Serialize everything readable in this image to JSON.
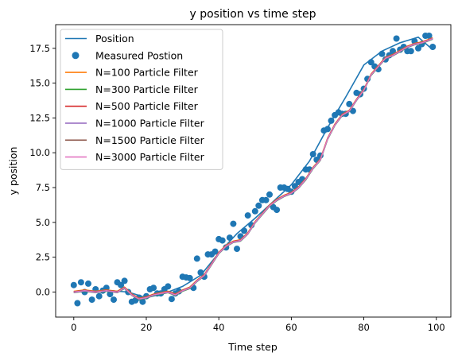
{
  "chart_data": {
    "type": "line",
    "title": "y position vs time step",
    "xlabel": "Time step",
    "ylabel": "y position",
    "xlim": [
      -5,
      104
    ],
    "ylim": [
      -1.8,
      19.2
    ],
    "xticks": [
      0,
      20,
      40,
      60,
      80,
      100
    ],
    "xtick_labels": [
      "0",
      "20",
      "40",
      "60",
      "80",
      "100"
    ],
    "yticks": [
      0.0,
      2.5,
      5.0,
      7.5,
      10.0,
      12.5,
      15.0,
      17.5
    ],
    "ytick_labels": [
      "0.0",
      "2.5",
      "5.0",
      "7.5",
      "10.0",
      "12.5",
      "15.0",
      "17.5"
    ],
    "grid": false,
    "legend_position": "top-left",
    "legend": [
      {
        "label": "Position",
        "kind": "line",
        "color": "#1f77b4"
      },
      {
        "label": "Measured Postion",
        "kind": "marker",
        "color": "#1f77b4"
      },
      {
        "label": "N=100 Particle Filter",
        "kind": "line",
        "color": "#ff7f0e"
      },
      {
        "label": "N=300 Particle Filter",
        "kind": "line",
        "color": "#2ca02c"
      },
      {
        "label": "N=500 Particle Filter",
        "kind": "line",
        "color": "#d62728"
      },
      {
        "label": "N=1000 Particle Filter",
        "kind": "line",
        "color": "#9467bd"
      },
      {
        "label": "N=1500 Particle Filter",
        "kind": "line",
        "color": "#8c564b"
      },
      {
        "label": "N=3000 Particle Filter",
        "kind": "line",
        "color": "#e377c2"
      }
    ],
    "position": {
      "name": "Position",
      "color": "#1f77b4",
      "x": [
        0,
        5,
        10,
        15,
        20,
        25,
        30,
        35,
        40,
        45,
        50,
        55,
        60,
        65,
        70,
        75,
        80,
        85,
        90,
        95,
        99
      ],
      "y": [
        0.0,
        0.05,
        0.1,
        0.0,
        -0.4,
        -0.1,
        0.4,
        1.2,
        2.8,
        4.2,
        5.3,
        6.5,
        7.7,
        9.4,
        11.8,
        14.0,
        16.3,
        17.3,
        17.9,
        18.3,
        17.4
      ]
    },
    "measured": {
      "name": "Measured Postion",
      "color": "#1f77b4",
      "points": [
        [
          0,
          0.5
        ],
        [
          1,
          -0.8
        ],
        [
          2,
          0.7
        ],
        [
          3,
          0.0
        ],
        [
          4,
          0.6
        ],
        [
          5,
          -0.55
        ],
        [
          6,
          0.2
        ],
        [
          7,
          -0.3
        ],
        [
          8,
          0.1
        ],
        [
          9,
          0.3
        ],
        [
          10,
          -0.15
        ],
        [
          11,
          -0.55
        ],
        [
          12,
          0.7
        ],
        [
          13,
          0.5
        ],
        [
          14,
          0.8
        ],
        [
          15,
          0.0
        ],
        [
          16,
          -0.7
        ],
        [
          17,
          -0.6
        ],
        [
          18,
          -0.4
        ],
        [
          19,
          -0.7
        ],
        [
          20,
          -0.3
        ],
        [
          21,
          0.2
        ],
        [
          22,
          0.3
        ],
        [
          23,
          -0.1
        ],
        [
          24,
          -0.1
        ],
        [
          25,
          0.2
        ],
        [
          26,
          0.4
        ],
        [
          27,
          -0.5
        ],
        [
          28,
          -0.1
        ],
        [
          29,
          0.05
        ],
        [
          30,
          1.1
        ],
        [
          31,
          1.05
        ],
        [
          32,
          1.0
        ],
        [
          33,
          0.3
        ],
        [
          34,
          2.4
        ],
        [
          35,
          1.4
        ],
        [
          36,
          1.1
        ],
        [
          37,
          2.7
        ],
        [
          38,
          2.7
        ],
        [
          39,
          2.9
        ],
        [
          40,
          3.8
        ],
        [
          41,
          3.7
        ],
        [
          42,
          3.2
        ],
        [
          43,
          3.9
        ],
        [
          44,
          4.9
        ],
        [
          45,
          3.1
        ],
        [
          46,
          4.0
        ],
        [
          47,
          4.4
        ],
        [
          48,
          5.5
        ],
        [
          49,
          4.8
        ],
        [
          50,
          5.8
        ],
        [
          51,
          6.2
        ],
        [
          52,
          6.6
        ],
        [
          53,
          6.6
        ],
        [
          54,
          7.0
        ],
        [
          55,
          6.1
        ],
        [
          56,
          5.9
        ],
        [
          57,
          7.5
        ],
        [
          58,
          7.5
        ],
        [
          59,
          7.4
        ],
        [
          60,
          7.2
        ],
        [
          61,
          7.6
        ],
        [
          62,
          7.9
        ],
        [
          63,
          8.1
        ],
        [
          64,
          8.8
        ],
        [
          65,
          8.8
        ],
        [
          66,
          9.9
        ],
        [
          67,
          9.5
        ],
        [
          68,
          9.8
        ],
        [
          69,
          11.6
        ],
        [
          70,
          11.7
        ],
        [
          71,
          12.3
        ],
        [
          72,
          12.7
        ],
        [
          73,
          12.9
        ],
        [
          74,
          12.8
        ],
        [
          75,
          12.8
        ],
        [
          76,
          13.5
        ],
        [
          77,
          13.0
        ],
        [
          78,
          14.3
        ],
        [
          79,
          14.2
        ],
        [
          80,
          14.6
        ],
        [
          81,
          15.3
        ],
        [
          82,
          16.5
        ],
        [
          83,
          16.2
        ],
        [
          84,
          16.0
        ],
        [
          85,
          17.1
        ],
        [
          86,
          16.7
        ],
        [
          87,
          17.0
        ],
        [
          88,
          17.3
        ],
        [
          89,
          18.2
        ],
        [
          90,
          17.4
        ],
        [
          91,
          17.6
        ],
        [
          92,
          17.3
        ],
        [
          93,
          17.3
        ],
        [
          94,
          18.0
        ],
        [
          95,
          17.5
        ],
        [
          96,
          17.8
        ],
        [
          97,
          18.4
        ],
        [
          98,
          18.4
        ],
        [
          99,
          17.6
        ]
      ]
    },
    "filters": [
      {
        "name": "N=100 Particle Filter",
        "color": "#ff7f0e",
        "offset": 0.06
      },
      {
        "name": "N=300 Particle Filter",
        "color": "#2ca02c",
        "offset": -0.05
      },
      {
        "name": "N=500 Particle Filter",
        "color": "#d62728",
        "offset": 0.03
      },
      {
        "name": "N=1000 Particle Filter",
        "color": "#9467bd",
        "offset": -0.03
      },
      {
        "name": "N=1500 Particle Filter",
        "color": "#8c564b",
        "offset": 0.02
      },
      {
        "name": "N=3000 Particle Filter",
        "color": "#e377c2",
        "offset": 0.0
      }
    ],
    "filter_estimate": {
      "x": [
        0,
        3,
        6,
        9,
        12,
        14,
        16,
        18,
        20,
        22,
        24,
        26,
        28,
        30,
        32,
        34,
        36,
        38,
        40,
        42,
        44,
        46,
        48,
        50,
        52,
        54,
        56,
        58,
        60,
        62,
        64,
        66,
        68,
        70,
        72,
        74,
        76,
        78,
        80,
        82,
        84,
        86,
        88,
        90,
        92,
        94,
        96,
        99
      ],
      "y": [
        0.0,
        0.1,
        0.0,
        0.1,
        0.0,
        0.3,
        -0.2,
        -0.5,
        -0.4,
        -0.2,
        -0.1,
        0.0,
        -0.2,
        0.1,
        0.3,
        0.8,
        1.2,
        2.0,
        2.8,
        3.3,
        3.6,
        3.7,
        4.2,
        5.0,
        5.6,
        6.2,
        6.6,
        6.9,
        7.1,
        7.5,
        8.1,
        8.9,
        9.5,
        11.0,
        12.0,
        12.7,
        13.0,
        13.8,
        14.5,
        15.6,
        16.2,
        16.8,
        17.0,
        17.3,
        17.6,
        17.8,
        17.9,
        18.2
      ]
    }
  }
}
